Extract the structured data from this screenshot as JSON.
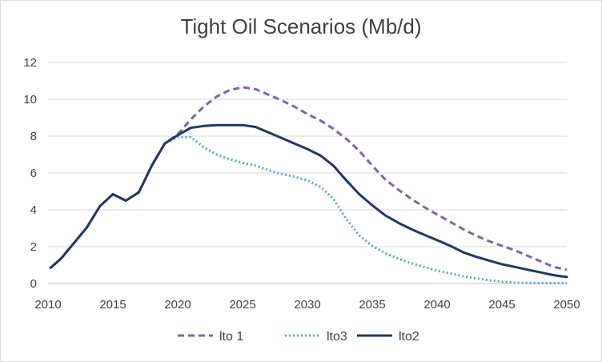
{
  "chart_data": {
    "type": "line",
    "title": "Tight Oil Scenarios (Mb/d)",
    "xlabel": "",
    "ylabel": "",
    "xlim": [
      2010,
      2050
    ],
    "ylim": [
      0,
      12
    ],
    "x_ticks": [
      2010,
      2015,
      2020,
      2025,
      2030,
      2035,
      2040,
      2045,
      2050
    ],
    "y_ticks": [
      0,
      2,
      4,
      6,
      8,
      10,
      12
    ],
    "grid": true,
    "legend_position": "bottom",
    "series": [
      {
        "name": "lto 1",
        "color": "#8064a2",
        "style": "dashed",
        "points": [
          [
            2010.2,
            0.85
          ],
          [
            2011,
            1.35
          ],
          [
            2012,
            2.2
          ],
          [
            2013,
            3.05
          ],
          [
            2014,
            4.2
          ],
          [
            2015,
            4.85
          ],
          [
            2016,
            4.5
          ],
          [
            2017,
            4.95
          ],
          [
            2018,
            6.4
          ],
          [
            2019,
            7.6
          ],
          [
            2020,
            8.1
          ],
          [
            2021,
            8.9
          ],
          [
            2022,
            9.6
          ],
          [
            2023,
            10.15
          ],
          [
            2024,
            10.5
          ],
          [
            2025,
            10.65
          ],
          [
            2026,
            10.55
          ],
          [
            2027,
            10.25
          ],
          [
            2028,
            9.95
          ],
          [
            2029,
            9.6
          ],
          [
            2030,
            9.2
          ],
          [
            2031,
            8.85
          ],
          [
            2032,
            8.4
          ],
          [
            2033,
            7.85
          ],
          [
            2034,
            7.2
          ],
          [
            2035,
            6.4
          ],
          [
            2036,
            5.65
          ],
          [
            2037,
            5.1
          ],
          [
            2038,
            4.6
          ],
          [
            2039,
            4.15
          ],
          [
            2040,
            3.75
          ],
          [
            2041,
            3.35
          ],
          [
            2042,
            2.95
          ],
          [
            2043,
            2.6
          ],
          [
            2044,
            2.3
          ],
          [
            2045,
            2.05
          ],
          [
            2046,
            1.8
          ],
          [
            2047,
            1.5
          ],
          [
            2048,
            1.2
          ],
          [
            2049,
            0.9
          ],
          [
            2050,
            0.75
          ]
        ]
      },
      {
        "name": "lto3",
        "color": "#4bacc6",
        "style": "dotted",
        "points": [
          [
            2010.2,
            0.85
          ],
          [
            2011,
            1.35
          ],
          [
            2012,
            2.2
          ],
          [
            2013,
            3.05
          ],
          [
            2014,
            4.2
          ],
          [
            2015,
            4.85
          ],
          [
            2016,
            4.5
          ],
          [
            2017,
            4.95
          ],
          [
            2018,
            6.4
          ],
          [
            2019,
            7.6
          ],
          [
            2020,
            7.95
          ],
          [
            2021,
            7.95
          ],
          [
            2022,
            7.4
          ],
          [
            2023,
            7.0
          ],
          [
            2024,
            6.75
          ],
          [
            2025,
            6.55
          ],
          [
            2026,
            6.4
          ],
          [
            2027,
            6.15
          ],
          [
            2028,
            5.95
          ],
          [
            2029,
            5.8
          ],
          [
            2030,
            5.6
          ],
          [
            2031,
            5.25
          ],
          [
            2032,
            4.6
          ],
          [
            2033,
            3.5
          ],
          [
            2034,
            2.6
          ],
          [
            2035,
            2.05
          ],
          [
            2036,
            1.65
          ],
          [
            2037,
            1.35
          ],
          [
            2038,
            1.1
          ],
          [
            2039,
            0.9
          ],
          [
            2040,
            0.7
          ],
          [
            2041,
            0.55
          ],
          [
            2042,
            0.4
          ],
          [
            2043,
            0.28
          ],
          [
            2044,
            0.18
          ],
          [
            2045,
            0.1
          ],
          [
            2046,
            0.05
          ],
          [
            2047,
            0.03
          ],
          [
            2048,
            0.02
          ],
          [
            2049,
            0.02
          ],
          [
            2050,
            0.02
          ]
        ]
      },
      {
        "name": "lto2",
        "color": "#1f3864",
        "style": "solid",
        "points": [
          [
            2010.2,
            0.85
          ],
          [
            2011,
            1.35
          ],
          [
            2012,
            2.2
          ],
          [
            2013,
            3.05
          ],
          [
            2014,
            4.2
          ],
          [
            2015,
            4.85
          ],
          [
            2016,
            4.5
          ],
          [
            2017,
            4.95
          ],
          [
            2018,
            6.4
          ],
          [
            2019,
            7.6
          ],
          [
            2020,
            8.05
          ],
          [
            2021,
            8.45
          ],
          [
            2022,
            8.55
          ],
          [
            2023,
            8.6
          ],
          [
            2024,
            8.6
          ],
          [
            2025,
            8.6
          ],
          [
            2026,
            8.5
          ],
          [
            2027,
            8.2
          ],
          [
            2028,
            7.9
          ],
          [
            2029,
            7.6
          ],
          [
            2030,
            7.3
          ],
          [
            2031,
            6.95
          ],
          [
            2032,
            6.4
          ],
          [
            2033,
            5.6
          ],
          [
            2034,
            4.85
          ],
          [
            2035,
            4.25
          ],
          [
            2036,
            3.7
          ],
          [
            2037,
            3.3
          ],
          [
            2038,
            2.95
          ],
          [
            2039,
            2.65
          ],
          [
            2040,
            2.35
          ],
          [
            2041,
            2.05
          ],
          [
            2042,
            1.7
          ],
          [
            2043,
            1.45
          ],
          [
            2044,
            1.25
          ],
          [
            2045,
            1.05
          ],
          [
            2046,
            0.9
          ],
          [
            2047,
            0.75
          ],
          [
            2048,
            0.6
          ],
          [
            2049,
            0.45
          ],
          [
            2050,
            0.35
          ]
        ]
      }
    ]
  }
}
